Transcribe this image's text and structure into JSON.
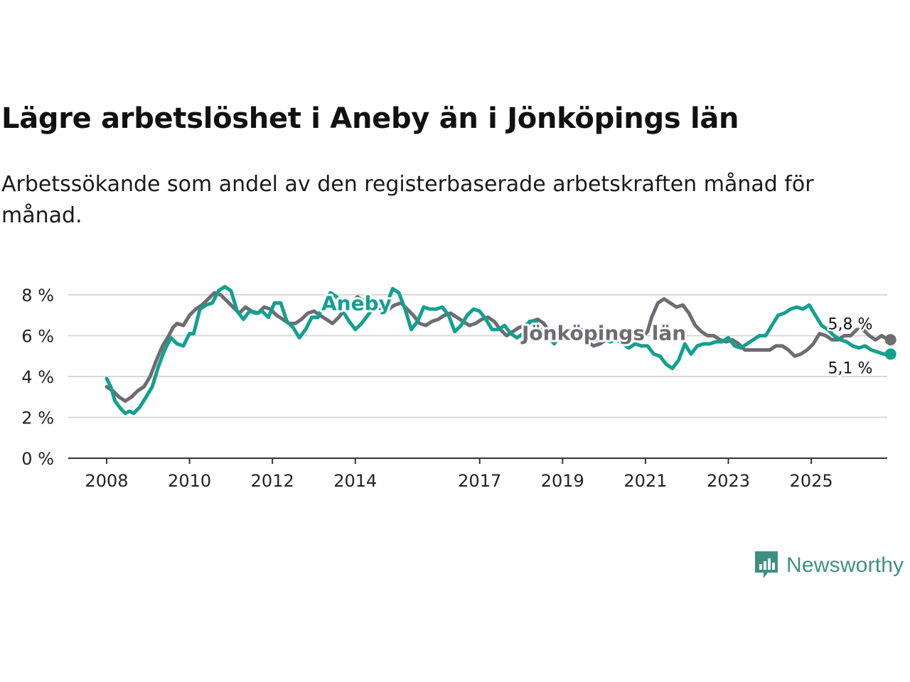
{
  "title": "Lägre arbetslöshet i Aneby än i Jönköpings län",
  "subtitle": "Arbetssökande som andel av den registerbaserade arbetskraften månad för månad.",
  "brand": {
    "name": "Newsworthy",
    "color": "#3e8f82"
  },
  "chart_data": {
    "type": "line",
    "title": "Lägre arbetslöshet i Aneby än i Jönköpings län",
    "xlabel": "",
    "ylabel": "",
    "xlim": [
      2007.9,
      2027.1
    ],
    "ylim": [
      0,
      8
    ],
    "y_ticks": [
      0,
      2,
      4,
      6,
      8
    ],
    "y_tick_labels": [
      "0 %",
      "2 %",
      "4 %",
      "6 %",
      "8 %"
    ],
    "x_ticks": [
      2008,
      2010,
      2012,
      2014,
      2017,
      2019,
      2021,
      2023,
      2025
    ],
    "x_tick_labels": [
      "2008",
      "2010",
      "2012",
      "2014",
      "2017",
      "2019",
      "2021",
      "2023",
      "2025"
    ],
    "grid": true,
    "series": [
      {
        "name": "Jönköpings län",
        "color": "#6d6c71",
        "label": "Jönköpings län",
        "end_label": "5,8 %",
        "points": [
          [
            2008.0,
            3.5
          ],
          [
            2008.15,
            3.3
          ],
          [
            2008.3,
            3.0
          ],
          [
            2008.45,
            2.8
          ],
          [
            2008.6,
            3.0
          ],
          [
            2008.75,
            3.3
          ],
          [
            2008.9,
            3.5
          ],
          [
            2009.05,
            4.0
          ],
          [
            2009.2,
            4.8
          ],
          [
            2009.35,
            5.5
          ],
          [
            2009.5,
            6.0
          ],
          [
            2009.6,
            6.4
          ],
          [
            2009.7,
            6.6
          ],
          [
            2009.85,
            6.5
          ],
          [
            2010.0,
            7.0
          ],
          [
            2010.15,
            7.3
          ],
          [
            2010.3,
            7.5
          ],
          [
            2010.45,
            7.8
          ],
          [
            2010.6,
            8.1
          ],
          [
            2010.75,
            8.0
          ],
          [
            2010.9,
            7.7
          ],
          [
            2011.05,
            7.4
          ],
          [
            2011.2,
            7.1
          ],
          [
            2011.35,
            7.4
          ],
          [
            2011.5,
            7.2
          ],
          [
            2011.65,
            7.1
          ],
          [
            2011.8,
            7.4
          ],
          [
            2011.95,
            7.3
          ],
          [
            2012.1,
            7.0
          ],
          [
            2012.25,
            6.8
          ],
          [
            2012.4,
            6.6
          ],
          [
            2012.55,
            6.6
          ],
          [
            2012.7,
            6.8
          ],
          [
            2012.85,
            7.1
          ],
          [
            2013.0,
            7.2
          ],
          [
            2013.15,
            7.0
          ],
          [
            2013.3,
            6.8
          ],
          [
            2013.45,
            6.6
          ],
          [
            2013.6,
            6.9
          ],
          [
            2013.75,
            7.3
          ],
          [
            2013.9,
            7.6
          ],
          [
            2014.05,
            7.9
          ],
          [
            2014.2,
            7.7
          ],
          [
            2014.35,
            7.6
          ],
          [
            2014.5,
            7.4
          ],
          [
            2014.65,
            7.3
          ],
          [
            2014.8,
            7.3
          ],
          [
            2014.95,
            7.5
          ],
          [
            2015.1,
            7.6
          ],
          [
            2015.25,
            7.3
          ],
          [
            2015.4,
            7.0
          ],
          [
            2015.55,
            6.6
          ],
          [
            2015.7,
            6.5
          ],
          [
            2015.85,
            6.7
          ],
          [
            2016.0,
            6.8
          ],
          [
            2016.15,
            7.0
          ],
          [
            2016.3,
            7.1
          ],
          [
            2016.45,
            6.9
          ],
          [
            2016.6,
            6.7
          ],
          [
            2016.75,
            6.5
          ],
          [
            2016.9,
            6.6
          ],
          [
            2017.05,
            6.8
          ],
          [
            2017.2,
            6.9
          ],
          [
            2017.35,
            6.7
          ],
          [
            2017.5,
            6.3
          ],
          [
            2017.65,
            6.0
          ],
          [
            2017.8,
            6.2
          ],
          [
            2017.95,
            6.4
          ],
          [
            2018.1,
            6.5
          ],
          [
            2018.25,
            6.7
          ],
          [
            2018.4,
            6.8
          ],
          [
            2018.55,
            6.6
          ],
          [
            2018.7,
            6.1
          ],
          [
            2018.85,
            6.2
          ],
          [
            2019.0,
            6.3
          ],
          [
            2019.15,
            6.3
          ],
          [
            2019.3,
            6.2
          ],
          [
            2019.45,
            6.0
          ],
          [
            2019.6,
            5.7
          ],
          [
            2019.75,
            5.5
          ],
          [
            2019.9,
            5.6
          ],
          [
            2020.05,
            5.8
          ],
          [
            2020.2,
            5.9
          ],
          [
            2020.35,
            5.8
          ],
          [
            2020.5,
            5.7
          ],
          [
            2020.65,
            5.9
          ],
          [
            2020.8,
            6.0
          ],
          [
            2020.95,
            6.0
          ],
          [
            2021.05,
            6.2
          ],
          [
            2021.15,
            6.9
          ],
          [
            2021.3,
            7.6
          ],
          [
            2021.45,
            7.8
          ],
          [
            2021.6,
            7.6
          ],
          [
            2021.75,
            7.4
          ],
          [
            2021.9,
            7.5
          ],
          [
            2022.05,
            7.1
          ],
          [
            2022.2,
            6.5
          ],
          [
            2022.35,
            6.2
          ],
          [
            2022.5,
            6.0
          ],
          [
            2022.65,
            6.0
          ],
          [
            2022.8,
            5.8
          ],
          [
            2022.95,
            5.7
          ],
          [
            2023.1,
            5.8
          ],
          [
            2023.25,
            5.6
          ],
          [
            2023.4,
            5.3
          ],
          [
            2023.55,
            5.3
          ],
          [
            2023.7,
            5.3
          ],
          [
            2023.85,
            5.3
          ],
          [
            2024.0,
            5.3
          ],
          [
            2024.15,
            5.5
          ],
          [
            2024.3,
            5.5
          ],
          [
            2024.45,
            5.3
          ],
          [
            2024.6,
            5.0
          ],
          [
            2024.75,
            5.1
          ],
          [
            2024.9,
            5.3
          ],
          [
            2025.05,
            5.6
          ],
          [
            2025.2,
            6.1
          ],
          [
            2025.35,
            6.0
          ],
          [
            2025.5,
            5.8
          ],
          [
            2025.65,
            5.8
          ],
          [
            2025.8,
            6.0
          ],
          [
            2025.95,
            6.0
          ],
          [
            2026.1,
            6.3
          ],
          [
            2026.25,
            6.3
          ],
          [
            2026.4,
            6.0
          ],
          [
            2026.55,
            5.8
          ],
          [
            2026.7,
            6.0
          ],
          [
            2026.85,
            5.8
          ],
          [
            2027.0,
            5.8
          ]
        ]
      },
      {
        "name": "Aneby",
        "color": "#12a08f",
        "label": "Aneby",
        "end_label": "5,1 %",
        "points": [
          [
            2008.0,
            3.9
          ],
          [
            2008.1,
            3.5
          ],
          [
            2008.2,
            2.8
          ],
          [
            2008.35,
            2.4
          ],
          [
            2008.45,
            2.2
          ],
          [
            2008.55,
            2.3
          ],
          [
            2008.65,
            2.2
          ],
          [
            2008.8,
            2.5
          ],
          [
            2008.95,
            3.0
          ],
          [
            2009.1,
            3.5
          ],
          [
            2009.25,
            4.5
          ],
          [
            2009.4,
            5.3
          ],
          [
            2009.55,
            5.9
          ],
          [
            2009.7,
            5.6
          ],
          [
            2009.85,
            5.5
          ],
          [
            2010.0,
            6.1
          ],
          [
            2010.1,
            6.1
          ],
          [
            2010.25,
            7.3
          ],
          [
            2010.4,
            7.5
          ],
          [
            2010.55,
            7.6
          ],
          [
            2010.7,
            8.2
          ],
          [
            2010.85,
            8.4
          ],
          [
            2011.0,
            8.2
          ],
          [
            2011.15,
            7.2
          ],
          [
            2011.3,
            6.8
          ],
          [
            2011.45,
            7.2
          ],
          [
            2011.6,
            7.1
          ],
          [
            2011.75,
            7.2
          ],
          [
            2011.9,
            6.9
          ],
          [
            2012.05,
            7.6
          ],
          [
            2012.2,
            7.6
          ],
          [
            2012.35,
            6.7
          ],
          [
            2012.5,
            6.4
          ],
          [
            2012.65,
            5.9
          ],
          [
            2012.8,
            6.3
          ],
          [
            2012.95,
            6.9
          ],
          [
            2013.1,
            6.9
          ],
          [
            2013.25,
            7.6
          ],
          [
            2013.4,
            8.1
          ],
          [
            2013.55,
            7.9
          ],
          [
            2013.7,
            7.2
          ],
          [
            2013.85,
            6.7
          ],
          [
            2014.0,
            6.3
          ],
          [
            2014.15,
            6.6
          ],
          [
            2014.3,
            7.0
          ],
          [
            2014.45,
            7.4
          ],
          [
            2014.6,
            7.6
          ],
          [
            2014.75,
            7.5
          ],
          [
            2014.9,
            8.3
          ],
          [
            2015.05,
            8.1
          ],
          [
            2015.2,
            7.3
          ],
          [
            2015.35,
            6.3
          ],
          [
            2015.5,
            6.7
          ],
          [
            2015.65,
            7.4
          ],
          [
            2015.8,
            7.3
          ],
          [
            2015.95,
            7.3
          ],
          [
            2016.1,
            7.4
          ],
          [
            2016.25,
            7.0
          ],
          [
            2016.4,
            6.2
          ],
          [
            2016.55,
            6.5
          ],
          [
            2016.7,
            7.0
          ],
          [
            2016.85,
            7.3
          ],
          [
            2017.0,
            7.2
          ],
          [
            2017.15,
            6.8
          ],
          [
            2017.3,
            6.3
          ],
          [
            2017.45,
            6.3
          ],
          [
            2017.6,
            6.5
          ],
          [
            2017.75,
            6.1
          ],
          [
            2017.9,
            5.9
          ],
          [
            2018.05,
            6.1
          ],
          [
            2018.2,
            6.7
          ],
          [
            2018.35,
            6.7
          ],
          [
            2018.5,
            6.2
          ],
          [
            2018.65,
            6.0
          ],
          [
            2018.8,
            5.6
          ],
          [
            2018.95,
            6.1
          ],
          [
            2019.1,
            6.2
          ],
          [
            2019.25,
            6.2
          ],
          [
            2019.4,
            6.4
          ],
          [
            2019.55,
            6.1
          ],
          [
            2019.7,
            6.0
          ],
          [
            2019.85,
            5.8
          ],
          [
            2020.0,
            5.8
          ],
          [
            2020.15,
            5.7
          ],
          [
            2020.3,
            5.8
          ],
          [
            2020.45,
            5.6
          ],
          [
            2020.6,
            5.4
          ],
          [
            2020.75,
            5.6
          ],
          [
            2020.9,
            5.5
          ],
          [
            2021.05,
            5.5
          ],
          [
            2021.2,
            5.1
          ],
          [
            2021.35,
            5.0
          ],
          [
            2021.5,
            4.6
          ],
          [
            2021.65,
            4.4
          ],
          [
            2021.8,
            4.8
          ],
          [
            2021.95,
            5.6
          ],
          [
            2022.1,
            5.1
          ],
          [
            2022.25,
            5.5
          ],
          [
            2022.4,
            5.6
          ],
          [
            2022.55,
            5.6
          ],
          [
            2022.7,
            5.7
          ],
          [
            2022.85,
            5.7
          ],
          [
            2023.0,
            5.9
          ],
          [
            2023.15,
            5.5
          ],
          [
            2023.3,
            5.4
          ],
          [
            2023.45,
            5.6
          ],
          [
            2023.6,
            5.8
          ],
          [
            2023.75,
            6.0
          ],
          [
            2023.9,
            6.0
          ],
          [
            2024.05,
            6.5
          ],
          [
            2024.2,
            7.0
          ],
          [
            2024.35,
            7.1
          ],
          [
            2024.5,
            7.3
          ],
          [
            2024.65,
            7.4
          ],
          [
            2024.8,
            7.3
          ],
          [
            2024.95,
            7.5
          ],
          [
            2025.1,
            7.0
          ],
          [
            2025.25,
            6.5
          ],
          [
            2025.4,
            6.3
          ],
          [
            2025.55,
            6.0
          ],
          [
            2025.7,
            5.8
          ],
          [
            2025.85,
            5.7
          ],
          [
            2026.0,
            5.5
          ],
          [
            2026.15,
            5.4
          ],
          [
            2026.3,
            5.5
          ],
          [
            2026.45,
            5.3
          ],
          [
            2026.6,
            5.2
          ],
          [
            2026.75,
            5.1
          ],
          [
            2026.9,
            5.1
          ],
          [
            2027.0,
            5.1
          ]
        ]
      }
    ]
  }
}
